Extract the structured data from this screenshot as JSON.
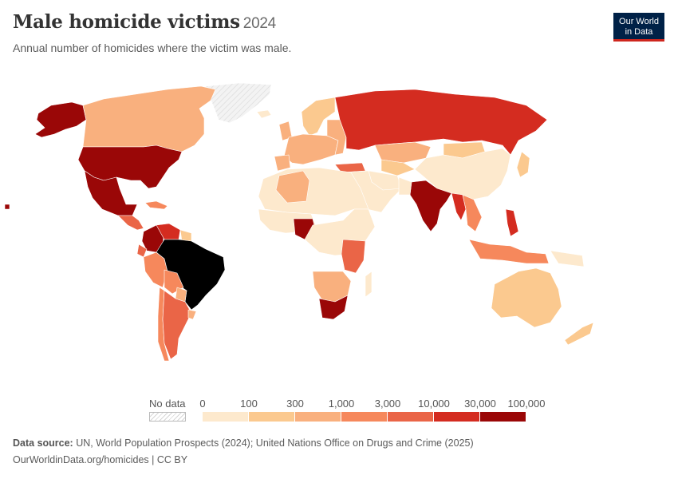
{
  "header": {
    "title": "Male homicide victims",
    "year": "2024",
    "subtitle": "Annual number of homicides where the victim was male."
  },
  "logo": {
    "line1": "Our World",
    "line2": "in Data"
  },
  "legend": {
    "no_data_label": "No data",
    "ticks": [
      "0",
      "100",
      "300",
      "1,000",
      "3,000",
      "10,000",
      "30,000",
      "100,000"
    ],
    "colors": [
      "#fde9cd",
      "#fbc98f",
      "#f9b07e",
      "#f6885c",
      "#ea6547",
      "#d42c20",
      "#9a0707"
    ]
  },
  "footer": {
    "source_label": "Data source:",
    "source_text": "UN, World Population Prospects (2024); United Nations Office on Drugs and Crime (2025)",
    "url": "OurWorldinData.org/homicides | CC BY"
  },
  "colors": {
    "no_data_fill": "#f2f2f2",
    "border": "#ffffff"
  },
  "map_data": {
    "regions": [
      {
        "name": "Brazil",
        "bin": 7
      },
      {
        "name": "India",
        "bin": 6
      },
      {
        "name": "United States",
        "bin": 6
      },
      {
        "name": "Mexico",
        "bin": 6
      },
      {
        "name": "Colombia",
        "bin": 6
      },
      {
        "name": "Venezuela",
        "bin": 5
      },
      {
        "name": "Nigeria",
        "bin": 6
      },
      {
        "name": "South Africa",
        "bin": 6
      },
      {
        "name": "Russia",
        "bin": 5
      },
      {
        "name": "Philippines",
        "bin": 5
      },
      {
        "name": "Myanmar",
        "bin": 5
      },
      {
        "name": "Tanzania",
        "bin": 4
      },
      {
        "name": "Argentina",
        "bin": 4
      },
      {
        "name": "Peru",
        "bin": 3
      },
      {
        "name": "Canada",
        "bin": 2
      },
      {
        "name": "Kazakhstan",
        "bin": 2
      },
      {
        "name": "Australia",
        "bin": 1
      },
      {
        "name": "China",
        "bin": 0
      },
      {
        "name": "Greenland",
        "bin": 0
      }
    ]
  }
}
